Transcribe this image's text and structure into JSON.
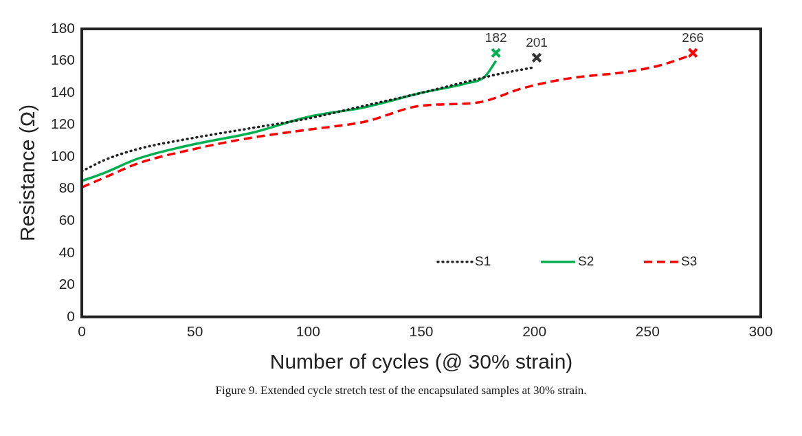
{
  "chart_data": {
    "type": "line",
    "xlabel": "Number of cycles (@ 30% strain)",
    "ylabel": "Resistance (Ω)",
    "xlim": [
      0,
      300
    ],
    "xticks": [
      0,
      50,
      100,
      150,
      200,
      250,
      300
    ],
    "ylim": [
      0,
      180
    ],
    "yticks": [
      0,
      20,
      40,
      60,
      80,
      100,
      120,
      140,
      160,
      180
    ],
    "grid": false,
    "legend": "bottom right",
    "series": [
      {
        "name": "S1",
        "color": "#222222",
        "line_style": "dotted",
        "x": [
          0,
          10,
          25,
          50,
          75,
          100,
          125,
          150,
          170,
          185,
          200
        ],
        "values": [
          91,
          98,
          105,
          112,
          118,
          124,
          132,
          140,
          147,
          152,
          156
        ]
      },
      {
        "name": "S2",
        "color": "#00b050",
        "line_style": "solid",
        "x": [
          0,
          10,
          25,
          50,
          75,
          100,
          125,
          150,
          170,
          178,
          183
        ],
        "values": [
          85,
          90,
          99,
          108,
          115,
          125,
          131,
          140,
          146,
          150,
          160
        ]
      },
      {
        "name": "S3",
        "color": "#ff0000",
        "line_style": "dashed",
        "x": [
          0,
          10,
          25,
          50,
          75,
          100,
          125,
          150,
          175,
          195,
          215,
          240,
          255,
          268
        ],
        "values": [
          81,
          87,
          96,
          105,
          112,
          117,
          122,
          132,
          134,
          143,
          149,
          153,
          157,
          163
        ]
      },
      {
        "type": "scatter",
        "marker": "cross",
        "color": "#00b050",
        "x": [
          183
        ],
        "values": [
          165
        ]
      },
      {
        "type": "scatter",
        "marker": "cross",
        "color": "#333333",
        "x": [
          201
        ],
        "values": [
          162
        ]
      },
      {
        "type": "scatter",
        "marker": "cross",
        "color": "#ff0000",
        "x": [
          270
        ],
        "values": [
          165
        ]
      }
    ],
    "annotations": [
      {
        "text": "182",
        "x": 183,
        "y": 165
      },
      {
        "text": "201",
        "x": 201,
        "y": 162
      },
      {
        "text": "266",
        "x": 270,
        "y": 165
      },
      "Figure 9. Extended cycle stretch test of the encapsulated samples at 30% strain."
    ]
  }
}
